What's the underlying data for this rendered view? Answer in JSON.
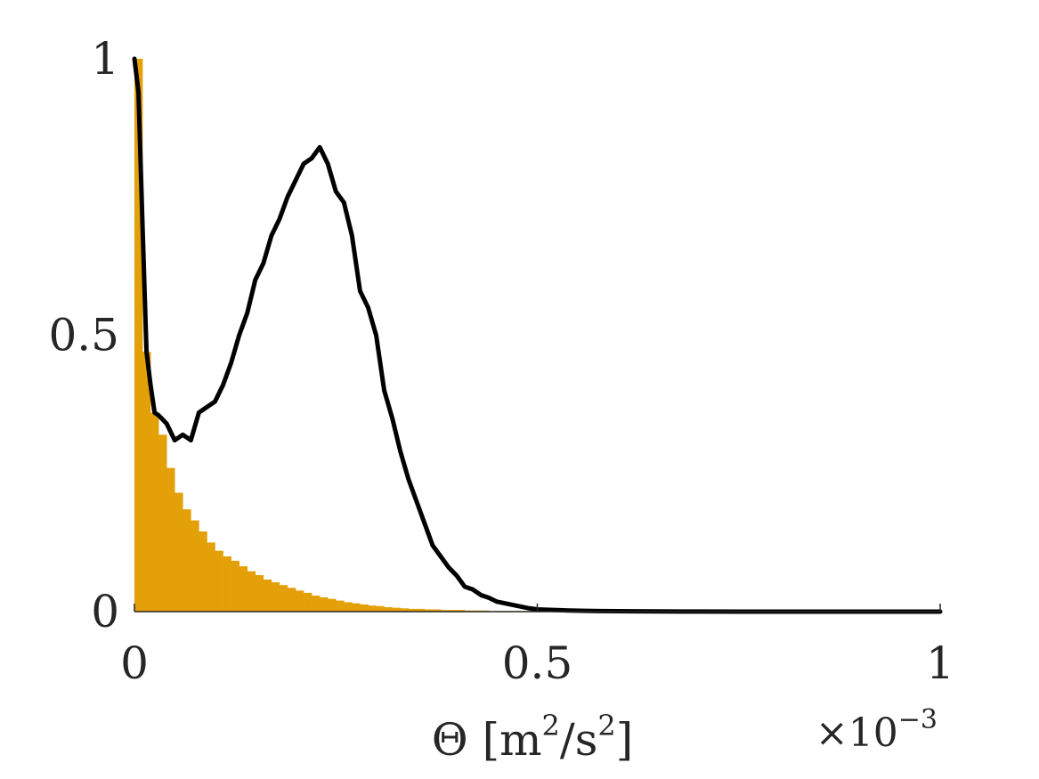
{
  "chart_data": {
    "type": "bar",
    "xlim": [
      0,
      1
    ],
    "ylim": [
      0,
      1
    ],
    "grid": false,
    "x_ticks": [
      {
        "value": 0,
        "label": "0"
      },
      {
        "value": 0.5,
        "label": "0.5"
      },
      {
        "value": 1,
        "label": "1"
      }
    ],
    "y_ticks": [
      {
        "value": 0,
        "label": "0"
      },
      {
        "value": 0.5,
        "label": "0.5"
      },
      {
        "value": 1,
        "label": "1"
      }
    ],
    "xlabel": {
      "symbol": "Θ [m",
      "sup1": "2",
      "mid": "/s",
      "sup2": "2",
      "end": "]"
    },
    "x_exponent": {
      "base": "×10",
      "power": "−3"
    },
    "histogram": {
      "color": "#E3A008",
      "bin_width": 0.01,
      "bins_start": [
        0,
        0.01,
        0.02,
        0.03,
        0.04,
        0.05,
        0.06,
        0.07,
        0.08,
        0.09,
        0.1,
        0.11,
        0.12,
        0.13,
        0.14,
        0.15,
        0.16,
        0.17,
        0.18,
        0.19,
        0.2,
        0.21,
        0.22,
        0.23,
        0.24,
        0.25,
        0.26,
        0.27,
        0.28,
        0.29,
        0.3,
        0.31,
        0.32,
        0.33,
        0.34,
        0.35,
        0.36,
        0.37,
        0.38,
        0.39,
        0.4,
        0.41,
        0.42,
        0.43,
        0.44,
        0.45,
        0.46,
        0.47,
        0.48,
        0.49
      ],
      "values": [
        1.0,
        0.47,
        0.36,
        0.32,
        0.26,
        0.215,
        0.185,
        0.165,
        0.145,
        0.125,
        0.11,
        0.1,
        0.092,
        0.082,
        0.073,
        0.066,
        0.058,
        0.053,
        0.048,
        0.043,
        0.038,
        0.034,
        0.029,
        0.026,
        0.023,
        0.02,
        0.017,
        0.015,
        0.013,
        0.011,
        0.01,
        0.008,
        0.007,
        0.006,
        0.005,
        0.005,
        0.004,
        0.004,
        0.003,
        0.003,
        0.003,
        0.002,
        0.002,
        0.002,
        0.001,
        0.001,
        0.001,
        0.001,
        0.001,
        0.001
      ]
    },
    "line": {
      "color": "#000000",
      "x": [
        0.0,
        0.005,
        0.01,
        0.015,
        0.02,
        0.025,
        0.03,
        0.04,
        0.05,
        0.06,
        0.07,
        0.08,
        0.09,
        0.1,
        0.11,
        0.12,
        0.13,
        0.14,
        0.15,
        0.16,
        0.17,
        0.18,
        0.19,
        0.2,
        0.21,
        0.22,
        0.23,
        0.24,
        0.25,
        0.26,
        0.27,
        0.28,
        0.29,
        0.3,
        0.31,
        0.32,
        0.33,
        0.34,
        0.35,
        0.36,
        0.37,
        0.38,
        0.39,
        0.4,
        0.41,
        0.42,
        0.43,
        0.44,
        0.45,
        0.46,
        0.47,
        0.48,
        0.49,
        0.5,
        0.52,
        0.54,
        0.56,
        0.58,
        0.6,
        0.62,
        0.65,
        0.7,
        0.75,
        0.8,
        0.85,
        0.9,
        0.95,
        1.0
      ],
      "y": [
        1.0,
        0.94,
        0.7,
        0.47,
        0.41,
        0.36,
        0.355,
        0.34,
        0.31,
        0.32,
        0.31,
        0.36,
        0.37,
        0.38,
        0.41,
        0.45,
        0.5,
        0.54,
        0.6,
        0.63,
        0.68,
        0.71,
        0.75,
        0.78,
        0.81,
        0.82,
        0.84,
        0.81,
        0.76,
        0.74,
        0.68,
        0.58,
        0.55,
        0.5,
        0.4,
        0.35,
        0.29,
        0.24,
        0.2,
        0.16,
        0.12,
        0.1,
        0.08,
        0.065,
        0.045,
        0.04,
        0.03,
        0.025,
        0.018,
        0.015,
        0.012,
        0.009,
        0.006,
        0.004,
        0.003,
        0.002,
        0.0015,
        0.001,
        0.0008,
        0.0006,
        0.0004,
        0.0002,
        0.0001,
        0.0,
        0.0,
        0.0,
        0.0,
        0.0
      ]
    }
  }
}
